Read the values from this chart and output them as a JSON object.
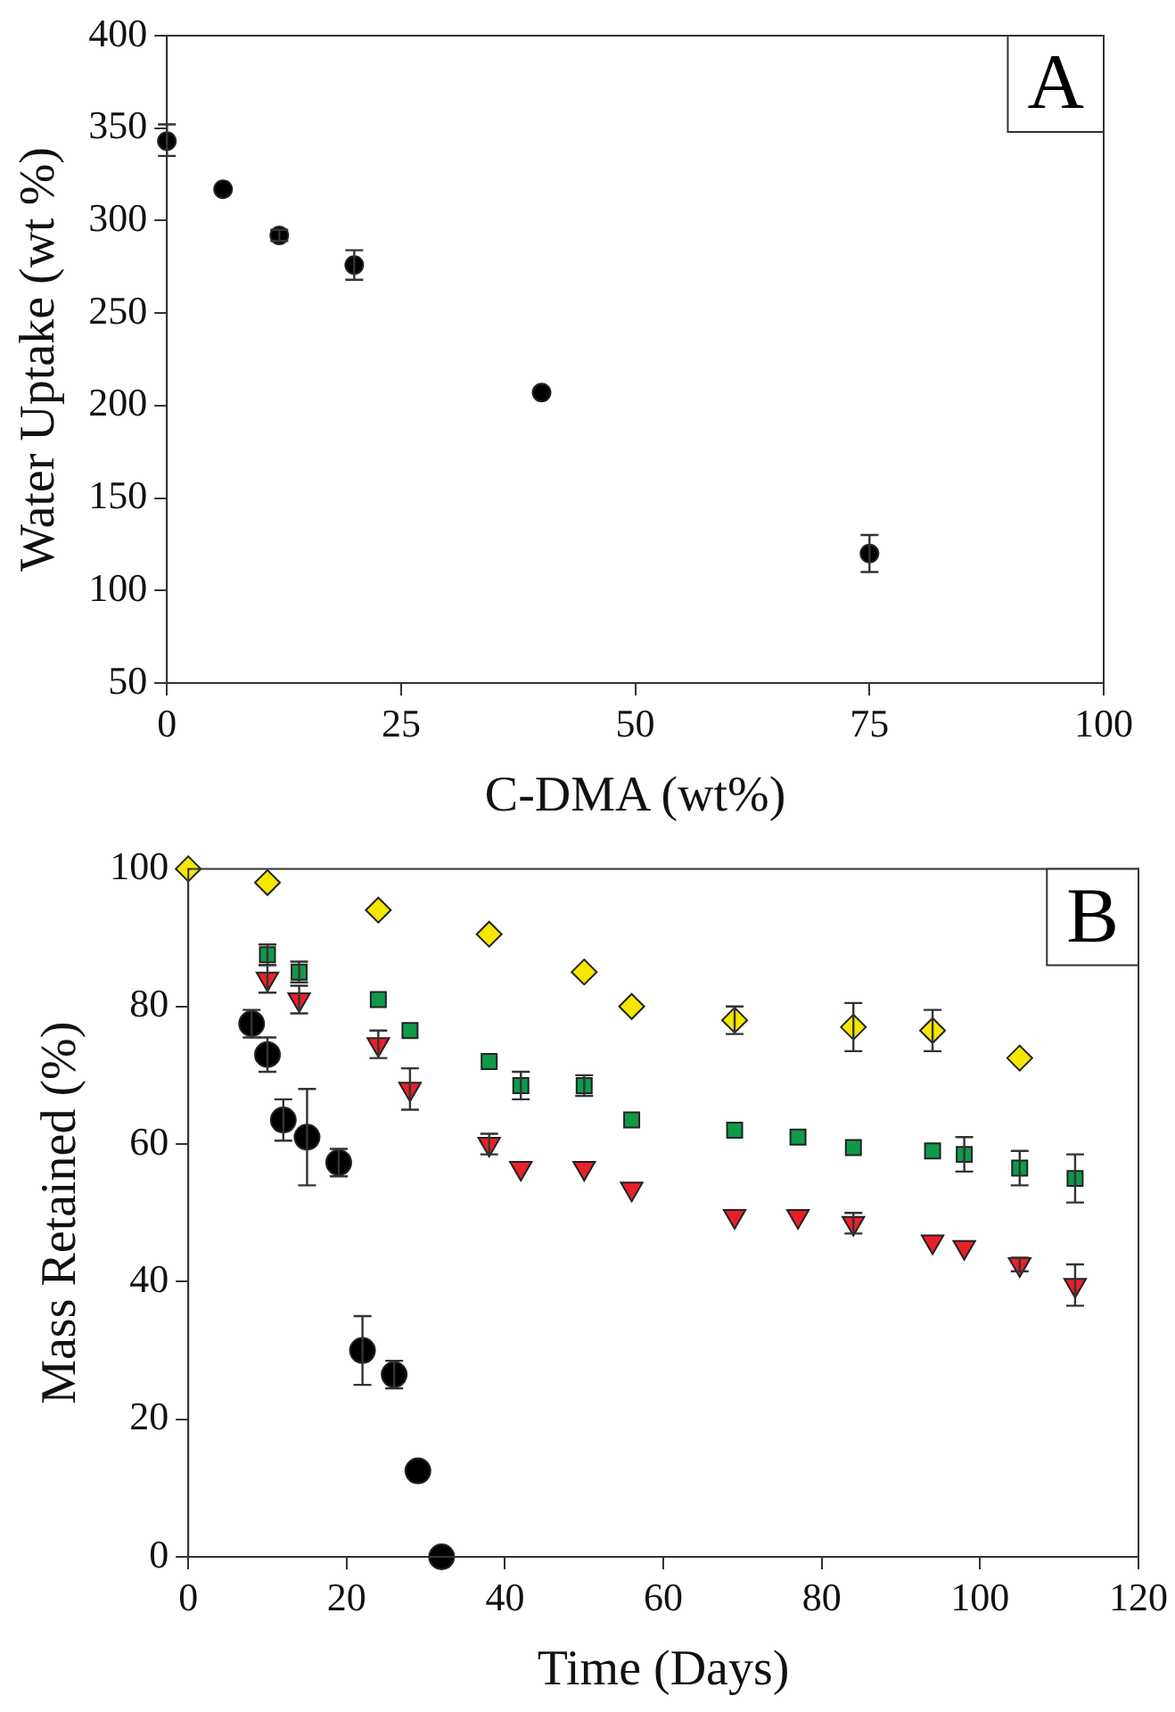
{
  "chart_data": [
    {
      "type": "scatter",
      "xlabel": "C-DMA (wt%)",
      "ylabel": "Water Uptake (wt %)",
      "annotations": [
        "A"
      ],
      "xlim": [
        0,
        100
      ],
      "xticks": [
        0,
        25,
        50,
        75,
        100
      ],
      "ylim": [
        50,
        400
      ],
      "yticks": [
        50,
        100,
        150,
        200,
        250,
        300,
        350,
        400
      ],
      "grid": false,
      "legend": false,
      "marker": "circle",
      "series": [
        {
          "color": "#000000",
          "x": [
            0,
            6,
            12,
            20,
            40,
            75
          ],
          "values": [
            343,
            317,
            292,
            276,
            207,
            120
          ],
          "errors": [
            [
              335,
              352
            ],
            null,
            3,
            8,
            null,
            10
          ]
        }
      ]
    },
    {
      "type": "scatter",
      "xlabel": "Time (Days)",
      "ylabel": "Mass Retained (%)",
      "annotations": [
        "B"
      ],
      "xlim": [
        0,
        120
      ],
      "xticks": [
        0,
        20,
        40,
        60,
        80,
        100,
        120
      ],
      "ylim": [
        0,
        100
      ],
      "yticks": [
        0,
        20,
        40,
        60,
        80,
        100
      ],
      "grid": false,
      "legend": false,
      "series": [
        {
          "color": "#000000",
          "marker": "circle",
          "x": [
            8,
            10,
            12,
            15,
            19,
            22,
            26,
            29,
            32
          ],
          "values": [
            77.5,
            73,
            63.5,
            61,
            57.3,
            30,
            26.5,
            12.5,
            0
          ],
          "errors": [
            2,
            2.5,
            3,
            7,
            2,
            5,
            2,
            null,
            null
          ]
        },
        {
          "color": "#f5e700",
          "marker": "diamond",
          "x": [
            0,
            10,
            24,
            38,
            50,
            56,
            69,
            84,
            94,
            105
          ],
          "values": [
            100,
            98,
            94,
            90.5,
            85,
            80,
            78,
            77,
            76.5,
            72.5
          ],
          "errors": [
            null,
            null,
            null,
            null,
            null,
            null,
            2,
            3.5,
            3,
            null
          ]
        },
        {
          "color": "#0f9a4a",
          "marker": "square",
          "x": [
            10,
            14,
            24,
            28,
            38,
            42,
            50,
            56,
            69,
            77,
            84,
            94,
            98,
            105,
            112
          ],
          "values": [
            87.5,
            85,
            81,
            76.5,
            72,
            68.5,
            68.5,
            63.5,
            62,
            61,
            59.5,
            59,
            58.5,
            56.5,
            55
          ],
          "errors": [
            1.5,
            1.5,
            null,
            null,
            null,
            2,
            1.5,
            null,
            null,
            null,
            null,
            null,
            2.5,
            2.5,
            3.5
          ]
        },
        {
          "color": "#e8202a",
          "marker": "triangle",
          "x": [
            10,
            14,
            24,
            28,
            38,
            42,
            50,
            56,
            69,
            77,
            84,
            94,
            98,
            105,
            112
          ],
          "values": [
            84,
            81,
            74.5,
            68,
            60,
            56.5,
            56.5,
            53.5,
            49.5,
            49.5,
            48.5,
            45.8,
            45,
            42.5,
            39.5
          ],
          "errors": [
            2,
            2,
            2,
            3,
            1.5,
            null,
            null,
            null,
            null,
            null,
            1.5,
            null,
            null,
            1,
            3
          ]
        }
      ]
    }
  ]
}
